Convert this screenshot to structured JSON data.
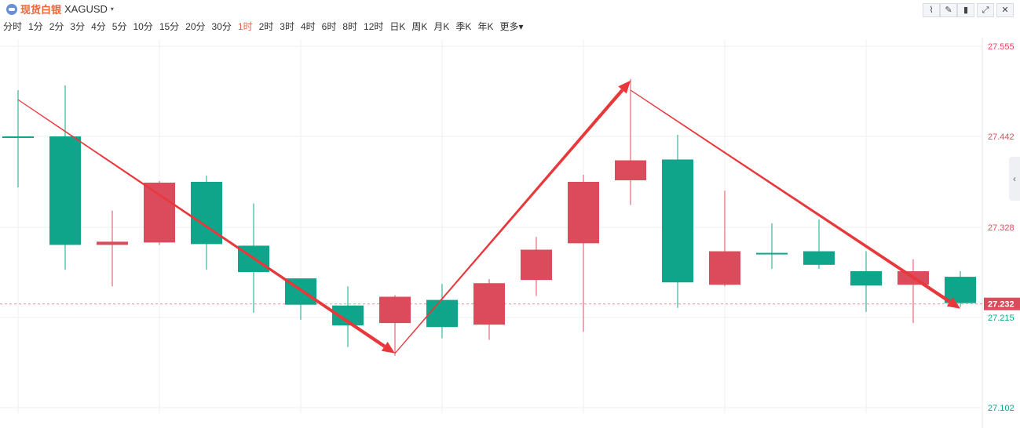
{
  "header": {
    "symbol_cn": "现货白银",
    "symbol_code": "XAGUSD",
    "caret": "▾"
  },
  "toolbar": {
    "icons": [
      "indicator-icon",
      "draw-icon",
      "candle-style-icon",
      "fullscreen-icon",
      "close-icon"
    ],
    "glyphs": [
      "⌇",
      "✎",
      "▮",
      "⤢",
      "✕"
    ]
  },
  "periods": {
    "items": [
      "分时",
      "1分",
      "2分",
      "3分",
      "4分",
      "5分",
      "10分",
      "15分",
      "20分",
      "30分",
      "1时",
      "2时",
      "3时",
      "4时",
      "6时",
      "8时",
      "12时",
      "日K",
      "周K",
      "月K",
      "季K",
      "年K",
      "更多"
    ],
    "active_index": 10,
    "more_caret": "▾"
  },
  "sidebar": {
    "collapse_glyph": "‹"
  },
  "colors": {
    "up": "#dc4b5c",
    "down": "#0ea58a",
    "arrow": "#e8383c",
    "grid": "#eef0f2",
    "current_price_label_bg": "#dc4b5c"
  },
  "chart_data": {
    "type": "candlestick",
    "y_ticks": [
      27.555,
      27.442,
      27.328,
      27.215,
      27.102
    ],
    "y_tick_labels": [
      "27.555",
      "27.442",
      "27.328",
      "27.215",
      "27.102"
    ],
    "ylim": [
      27.102,
      27.555
    ],
    "current_price": 27.232,
    "current_price_label": "27.232",
    "candles": [
      {
        "open": 27.442,
        "close": 27.442,
        "high": 27.5,
        "low": 27.378,
        "dir": "down"
      },
      {
        "open": 27.442,
        "close": 27.306,
        "high": 27.506,
        "low": 27.275,
        "dir": "down"
      },
      {
        "open": 27.306,
        "close": 27.31,
        "high": 27.349,
        "low": 27.254,
        "dir": "up"
      },
      {
        "open": 27.309,
        "close": 27.384,
        "high": 27.386,
        "low": 27.306,
        "dir": "up"
      },
      {
        "open": 27.385,
        "close": 27.307,
        "high": 27.393,
        "low": 27.275,
        "dir": "down"
      },
      {
        "open": 27.305,
        "close": 27.272,
        "high": 27.358,
        "low": 27.221,
        "dir": "down"
      },
      {
        "open": 27.264,
        "close": 27.231,
        "high": 27.262,
        "low": 27.212,
        "dir": "down"
      },
      {
        "open": 27.23,
        "close": 27.205,
        "high": 27.254,
        "low": 27.178,
        "dir": "down"
      },
      {
        "open": 27.208,
        "close": 27.241,
        "high": 27.243,
        "low": 27.167,
        "dir": "up"
      },
      {
        "open": 27.237,
        "close": 27.203,
        "high": 27.257,
        "low": 27.189,
        "dir": "down"
      },
      {
        "open": 27.206,
        "close": 27.258,
        "high": 27.263,
        "low": 27.187,
        "dir": "up"
      },
      {
        "open": 27.262,
        "close": 27.3,
        "high": 27.316,
        "low": 27.242,
        "dir": "up"
      },
      {
        "open": 27.308,
        "close": 27.385,
        "high": 27.394,
        "low": 27.197,
        "dir": "up"
      },
      {
        "open": 27.387,
        "close": 27.412,
        "high": 27.514,
        "low": 27.356,
        "dir": "up"
      },
      {
        "open": 27.413,
        "close": 27.259,
        "high": 27.444,
        "low": 27.227,
        "dir": "down"
      },
      {
        "open": 27.256,
        "close": 27.298,
        "high": 27.374,
        "low": 27.254,
        "dir": "up"
      },
      {
        "open": 27.296,
        "close": 27.296,
        "high": 27.333,
        "low": 27.276,
        "dir": "down"
      },
      {
        "open": 27.298,
        "close": 27.281,
        "high": 27.338,
        "low": 27.276,
        "dir": "down"
      },
      {
        "open": 27.273,
        "close": 27.255,
        "high": 27.298,
        "low": 27.222,
        "dir": "down"
      },
      {
        "open": 27.256,
        "close": 27.273,
        "high": 27.288,
        "low": 27.208,
        "dir": "up"
      },
      {
        "open": 27.266,
        "close": 27.233,
        "high": 27.273,
        "low": 27.228,
        "dir": "down"
      }
    ],
    "annotations": [
      {
        "kind": "arrow",
        "from_index": 0,
        "from_price": 27.488,
        "to_index": 8,
        "to_price": 27.17
      },
      {
        "kind": "arrow",
        "from_index": 8,
        "from_price": 27.17,
        "to_index": 13,
        "to_price": 27.512
      },
      {
        "kind": "arrow",
        "from_index": 13,
        "from_price": 27.5,
        "to_index": 20,
        "to_price": 27.226
      }
    ],
    "grid": true
  }
}
